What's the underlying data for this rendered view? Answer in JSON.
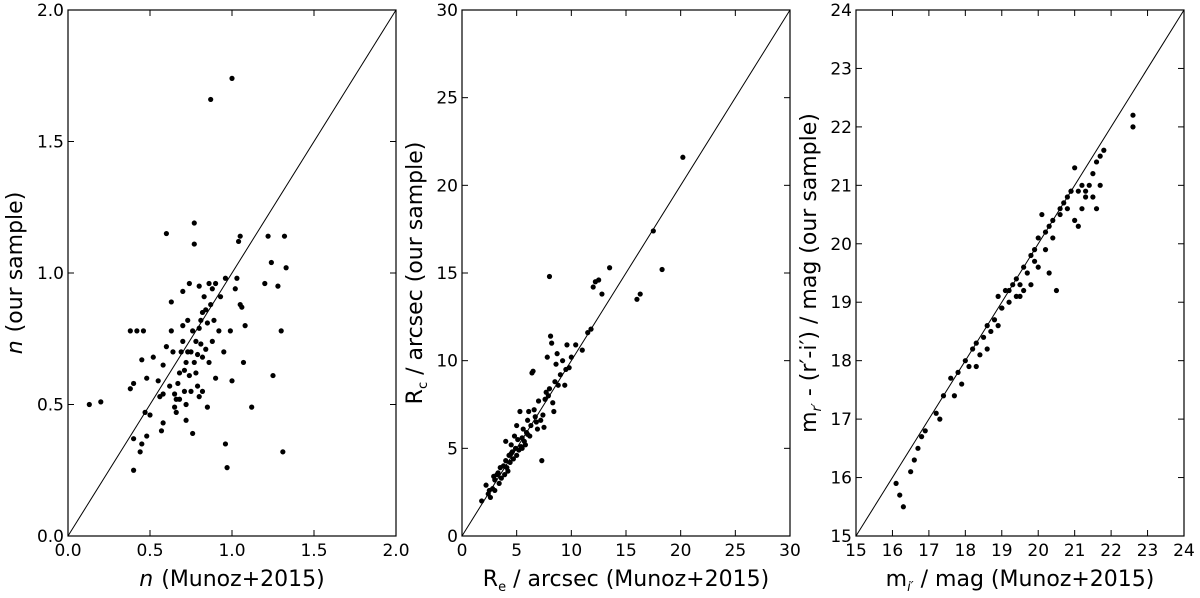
{
  "chart_data": [
    {
      "type": "scatter",
      "xlabel": "n (Munoz+2015)",
      "ylabel": "n (our sample)",
      "xlim": [
        0.0,
        2.0
      ],
      "ylim": [
        0.0,
        2.0
      ],
      "xticks": [
        "0.0",
        "0.5",
        "1.0",
        "1.5",
        "2.0"
      ],
      "yticks": [
        "0.0",
        "0.5",
        "1.0",
        "1.5",
        "2.0"
      ],
      "one_to_one_line": true,
      "points": [
        [
          0.13,
          0.5
        ],
        [
          0.2,
          0.51
        ],
        [
          0.38,
          0.56
        ],
        [
          0.4,
          0.58
        ],
        [
          0.38,
          0.78
        ],
        [
          0.42,
          0.78
        ],
        [
          0.46,
          0.78
        ],
        [
          0.4,
          0.37
        ],
        [
          0.4,
          0.25
        ],
        [
          0.44,
          0.32
        ],
        [
          0.45,
          0.35
        ],
        [
          0.47,
          0.47
        ],
        [
          0.48,
          0.38
        ],
        [
          0.5,
          0.46
        ],
        [
          0.48,
          0.6
        ],
        [
          0.45,
          0.67
        ],
        [
          0.52,
          0.68
        ],
        [
          0.56,
          0.53
        ],
        [
          0.57,
          0.4
        ],
        [
          0.58,
          0.43
        ],
        [
          0.58,
          0.54
        ],
        [
          0.58,
          0.65
        ],
        [
          0.6,
          0.72
        ],
        [
          0.6,
          1.15
        ],
        [
          0.63,
          0.78
        ],
        [
          0.63,
          0.89
        ],
        [
          0.64,
          0.7
        ],
        [
          0.65,
          0.54
        ],
        [
          0.65,
          0.49
        ],
        [
          0.66,
          0.47
        ],
        [
          0.66,
          0.52
        ],
        [
          0.67,
          0.58
        ],
        [
          0.68,
          0.62
        ],
        [
          0.69,
          0.7
        ],
        [
          0.7,
          0.74
        ],
        [
          0.7,
          0.93
        ],
        [
          0.7,
          0.8
        ],
        [
          0.71,
          0.63
        ],
        [
          0.71,
          0.55
        ],
        [
          0.72,
          0.5
        ],
        [
          0.72,
          0.44
        ],
        [
          0.72,
          0.66
        ],
        [
          0.73,
          0.7
        ],
        [
          0.73,
          0.82
        ],
        [
          0.74,
          0.96
        ],
        [
          0.74,
          0.61
        ],
        [
          0.75,
          0.7
        ],
        [
          0.75,
          0.55
        ],
        [
          0.76,
          0.39
        ],
        [
          0.76,
          0.78
        ],
        [
          0.77,
          0.66
        ],
        [
          0.77,
          1.11
        ],
        [
          0.77,
          1.19
        ],
        [
          0.78,
          0.74
        ],
        [
          0.78,
          0.62
        ],
        [
          0.79,
          0.57
        ],
        [
          0.79,
          0.69
        ],
        [
          0.8,
          0.79
        ],
        [
          0.8,
          0.95
        ],
        [
          0.81,
          0.82
        ],
        [
          0.81,
          0.73
        ],
        [
          0.82,
          0.85
        ],
        [
          0.82,
          0.68
        ],
        [
          0.82,
          0.55
        ],
        [
          0.83,
          0.91
        ],
        [
          0.84,
          0.86
        ],
        [
          0.84,
          0.71
        ],
        [
          0.85,
          0.81
        ],
        [
          0.85,
          0.49
        ],
        [
          0.86,
          0.96
        ],
        [
          0.86,
          0.66
        ],
        [
          0.87,
          0.88
        ],
        [
          0.87,
          1.66
        ],
        [
          0.88,
          0.94
        ],
        [
          0.88,
          0.74
        ],
        [
          0.89,
          0.82
        ],
        [
          0.9,
          0.96
        ],
        [
          0.9,
          0.6
        ],
        [
          0.92,
          0.78
        ],
        [
          0.93,
          0.91
        ],
        [
          0.95,
          0.7
        ],
        [
          0.96,
          0.98
        ],
        [
          0.96,
          0.35
        ],
        [
          0.97,
          0.26
        ],
        [
          0.99,
          0.78
        ],
        [
          1.0,
          0.59
        ],
        [
          1.0,
          1.74
        ],
        [
          1.02,
          0.94
        ],
        [
          1.03,
          0.98
        ],
        [
          1.04,
          1.12
        ],
        [
          1.05,
          1.14
        ],
        [
          1.05,
          0.88
        ],
        [
          1.06,
          0.87
        ],
        [
          1.07,
          0.66
        ],
        [
          1.08,
          0.8
        ],
        [
          1.12,
          0.49
        ],
        [
          1.2,
          0.96
        ],
        [
          1.22,
          1.14
        ],
        [
          1.24,
          1.04
        ],
        [
          1.25,
          0.61
        ],
        [
          1.28,
          0.95
        ],
        [
          1.3,
          0.78
        ],
        [
          1.31,
          0.32
        ],
        [
          1.32,
          1.14
        ],
        [
          1.33,
          1.02
        ],
        [
          0.8,
          0.53
        ],
        [
          0.62,
          0.57
        ],
        [
          0.55,
          0.59
        ],
        [
          0.68,
          0.52
        ]
      ]
    },
    {
      "type": "scatter",
      "xlabel": "Re / arcsec (Munoz+2015)",
      "ylabel": "Rc / arcsec (our sample)",
      "xlim": [
        0,
        30
      ],
      "ylim": [
        0,
        30
      ],
      "xticks": [
        "0",
        "5",
        "10",
        "15",
        "20",
        "25",
        "30"
      ],
      "yticks": [
        "0",
        "5",
        "10",
        "15",
        "20",
        "25",
        "30"
      ],
      "one_to_one_line": true,
      "points": [
        [
          1.8,
          2.0
        ],
        [
          2.2,
          2.9
        ],
        [
          2.4,
          2.4
        ],
        [
          2.6,
          2.2
        ],
        [
          2.8,
          2.7
        ],
        [
          3.0,
          3.2
        ],
        [
          3.0,
          2.6
        ],
        [
          3.2,
          3.5
        ],
        [
          3.4,
          3.0
        ],
        [
          3.5,
          3.9
        ],
        [
          3.6,
          3.3
        ],
        [
          3.8,
          4.0
        ],
        [
          3.9,
          3.5
        ],
        [
          4.0,
          4.3
        ],
        [
          4.1,
          3.9
        ],
        [
          4.2,
          3.7
        ],
        [
          4.3,
          4.6
        ],
        [
          4.4,
          4.2
        ],
        [
          4.5,
          5.2
        ],
        [
          4.6,
          4.8
        ],
        [
          4.7,
          4.4
        ],
        [
          4.8,
          5.7
        ],
        [
          4.9,
          5.0
        ],
        [
          5.0,
          4.6
        ],
        [
          5.0,
          6.3
        ],
        [
          5.1,
          5.5
        ],
        [
          5.2,
          4.9
        ],
        [
          5.3,
          7.1
        ],
        [
          5.4,
          5.1
        ],
        [
          5.5,
          5.6
        ],
        [
          5.6,
          6.1
        ],
        [
          5.7,
          5.4
        ],
        [
          5.8,
          5.2
        ],
        [
          5.9,
          5.9
        ],
        [
          6.0,
          6.6
        ],
        [
          6.1,
          7.1
        ],
        [
          6.2,
          5.7
        ],
        [
          6.3,
          6.3
        ],
        [
          6.4,
          9.3
        ],
        [
          6.5,
          9.4
        ],
        [
          6.6,
          7.2
        ],
        [
          6.7,
          6.8
        ],
        [
          6.8,
          6.5
        ],
        [
          6.9,
          6.1
        ],
        [
          7.0,
          7.7
        ],
        [
          7.2,
          6.6
        ],
        [
          7.3,
          4.3
        ],
        [
          7.4,
          6.9
        ],
        [
          7.5,
          6.2
        ],
        [
          7.6,
          7.8
        ],
        [
          7.7,
          8.2
        ],
        [
          7.8,
          10.2
        ],
        [
          7.9,
          8.0
        ],
        [
          8.0,
          8.4
        ],
        [
          8.0,
          14.8
        ],
        [
          8.1,
          11.4
        ],
        [
          8.2,
          11.0
        ],
        [
          8.3,
          7.6
        ],
        [
          8.4,
          7.1
        ],
        [
          8.5,
          8.8
        ],
        [
          8.6,
          9.8
        ],
        [
          8.7,
          10.4
        ],
        [
          8.8,
          8.6
        ],
        [
          9.0,
          9.2
        ],
        [
          9.2,
          10.0
        ],
        [
          9.4,
          8.6
        ],
        [
          9.5,
          9.5
        ],
        [
          9.6,
          10.9
        ],
        [
          9.8,
          9.6
        ],
        [
          10.0,
          10.2
        ],
        [
          10.4,
          10.9
        ],
        [
          11.0,
          10.6
        ],
        [
          11.5,
          11.6
        ],
        [
          11.8,
          11.8
        ],
        [
          12.0,
          14.2
        ],
        [
          12.2,
          14.5
        ],
        [
          12.5,
          14.6
        ],
        [
          12.8,
          13.8
        ],
        [
          13.5,
          15.3
        ],
        [
          16.0,
          13.5
        ],
        [
          16.3,
          13.8
        ],
        [
          17.5,
          17.4
        ],
        [
          18.3,
          15.2
        ],
        [
          20.2,
          21.6
        ],
        [
          4.0,
          5.4
        ],
        [
          4.5,
          4.7
        ],
        [
          5.5,
          5.0
        ],
        [
          6.0,
          5.8
        ],
        [
          3.3,
          3.6
        ],
        [
          2.9,
          3.4
        ],
        [
          2.5,
          2.6
        ]
      ]
    },
    {
      "type": "scatter",
      "xlabel": "mi′ / mag (Munoz+2015)",
      "ylabel": "mr′ - (r′-i′) / mag (our sample)",
      "xlim": [
        15,
        24
      ],
      "ylim": [
        15,
        24
      ],
      "xticks": [
        "15",
        "16",
        "17",
        "18",
        "19",
        "20",
        "21",
        "22",
        "23",
        "24"
      ],
      "yticks": [
        "15",
        "16",
        "17",
        "18",
        "19",
        "20",
        "21",
        "22",
        "23",
        "24"
      ],
      "one_to_one_line": true,
      "points": [
        [
          16.1,
          15.9
        ],
        [
          16.2,
          15.7
        ],
        [
          16.3,
          15.5
        ],
        [
          16.5,
          16.1
        ],
        [
          16.6,
          16.3
        ],
        [
          16.7,
          16.5
        ],
        [
          16.8,
          16.7
        ],
        [
          16.9,
          16.8
        ],
        [
          17.2,
          17.1
        ],
        [
          17.3,
          17.0
        ],
        [
          17.4,
          17.4
        ],
        [
          17.6,
          17.7
        ],
        [
          17.7,
          17.4
        ],
        [
          17.8,
          17.8
        ],
        [
          17.9,
          17.6
        ],
        [
          18.0,
          18.0
        ],
        [
          18.1,
          17.9
        ],
        [
          18.2,
          18.2
        ],
        [
          18.3,
          18.3
        ],
        [
          18.4,
          18.1
        ],
        [
          18.5,
          18.4
        ],
        [
          18.6,
          18.6
        ],
        [
          18.7,
          18.5
        ],
        [
          18.8,
          18.7
        ],
        [
          18.9,
          19.1
        ],
        [
          19.0,
          18.9
        ],
        [
          19.1,
          19.2
        ],
        [
          19.2,
          19.0
        ],
        [
          19.3,
          19.3
        ],
        [
          19.4,
          19.4
        ],
        [
          19.5,
          19.1
        ],
        [
          19.6,
          19.6
        ],
        [
          19.7,
          19.5
        ],
        [
          19.8,
          19.8
        ],
        [
          19.9,
          19.9
        ],
        [
          20.0,
          20.1
        ],
        [
          20.1,
          20.5
        ],
        [
          20.2,
          20.2
        ],
        [
          20.3,
          20.3
        ],
        [
          20.4,
          20.4
        ],
        [
          20.5,
          19.2
        ],
        [
          20.3,
          19.5
        ],
        [
          19.8,
          19.3
        ],
        [
          19.6,
          19.2
        ],
        [
          20.6,
          20.6
        ],
        [
          20.7,
          20.7
        ],
        [
          20.8,
          20.8
        ],
        [
          20.9,
          20.9
        ],
        [
          21.0,
          21.3
        ],
        [
          21.0,
          20.4
        ],
        [
          21.1,
          20.3
        ],
        [
          21.2,
          20.6
        ],
        [
          21.3,
          20.8
        ],
        [
          21.4,
          21.0
        ],
        [
          21.5,
          21.2
        ],
        [
          21.6,
          21.4
        ],
        [
          21.7,
          21.5
        ],
        [
          21.8,
          21.6
        ],
        [
          22.6,
          22.2
        ],
        [
          22.6,
          22.0
        ],
        [
          18.3,
          17.9
        ],
        [
          18.6,
          18.2
        ],
        [
          19.0,
          18.9
        ],
        [
          19.2,
          19.2
        ],
        [
          19.4,
          19.1
        ],
        [
          19.9,
          19.7
        ],
        [
          20.0,
          19.6
        ],
        [
          20.2,
          19.9
        ],
        [
          20.4,
          20.1
        ],
        [
          20.6,
          20.5
        ],
        [
          20.9,
          20.9
        ],
        [
          21.1,
          20.9
        ],
        [
          21.3,
          20.9
        ],
        [
          21.5,
          20.8
        ],
        [
          21.6,
          20.6
        ],
        [
          21.7,
          21.0
        ],
        [
          21.2,
          21.0
        ],
        [
          20.8,
          20.6
        ],
        [
          18.9,
          18.6
        ],
        [
          19.5,
          19.3
        ]
      ]
    }
  ],
  "panels": [
    {
      "xlabel_text": "(Munoz+2015)",
      "ylabel_text": "(our sample)",
      "xvar": "n",
      "yvar": "n"
    },
    {
      "xlabel_main": "R",
      "xlabel_sub": "e",
      "xlabel_text": " / arcsec (Munoz+2015)",
      "ylabel_main": "R",
      "ylabel_sub": "c",
      "ylabel_text": " / arcsec (our sample)"
    },
    {
      "xlabel_main": "m",
      "xlabel_sub": "i′",
      "xlabel_text": " / mag (Munoz+2015)",
      "ylabel_main": "m",
      "ylabel_sub": "r′",
      "ylabel_text": " - (r′-i′) / mag (our sample)"
    }
  ]
}
